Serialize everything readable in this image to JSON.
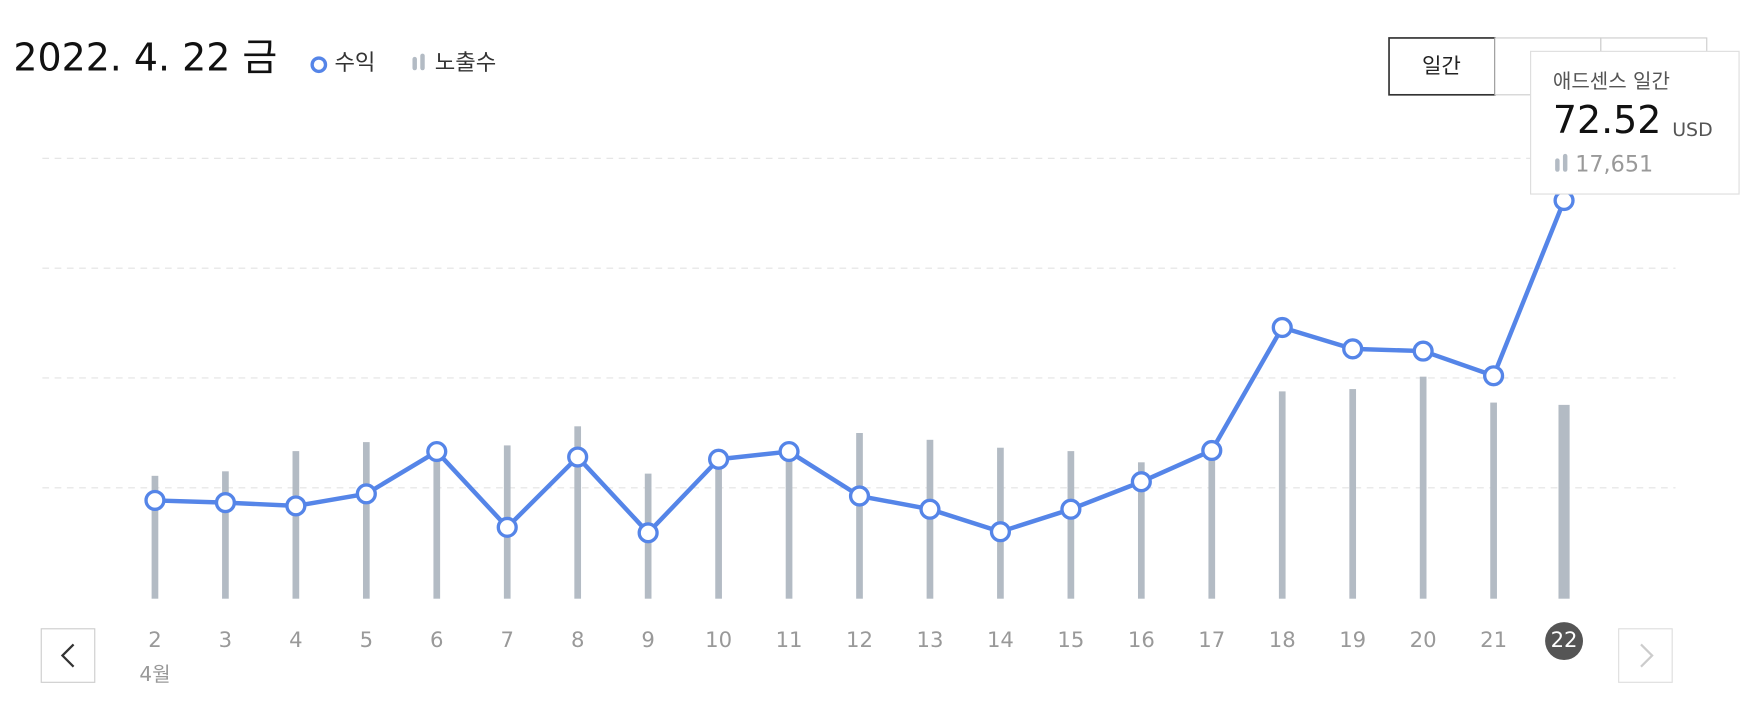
{
  "chart_data": {
    "type": "line",
    "title": "2022. 4. 22 금",
    "categories": [
      "2",
      "3",
      "4",
      "5",
      "6",
      "7",
      "8",
      "9",
      "10",
      "11",
      "12",
      "13",
      "14",
      "15",
      "16",
      "17",
      "18",
      "19",
      "20",
      "21",
      "22"
    ],
    "month_label": "4월",
    "series": [
      {
        "name": "수익",
        "type": "line",
        "color": "#5585e8",
        "axis": "y",
        "values": [
          17.9,
          17.5,
          16.9,
          19.1,
          26.8,
          13.0,
          25.8,
          12.0,
          25.4,
          26.8,
          18.7,
          16.3,
          12.2,
          16.3,
          21.3,
          27.0,
          49.4,
          45.5,
          45.1,
          40.6,
          72.52
        ]
      },
      {
        "name": "노출수",
        "type": "bar",
        "color": "#b3bbc4",
        "axis": "y2",
        "values": [
          11190,
          11600,
          13440,
          14260,
          13650,
          13960,
          15700,
          11390,
          12830,
          13550,
          15090,
          14470,
          13750,
          13440,
          12420,
          13650,
          18880,
          19090,
          20220,
          17860,
          17651
        ],
        "value_labels": [
          null,
          null,
          null,
          null,
          null,
          null,
          null,
          null,
          null,
          null,
          null,
          null,
          null,
          null,
          null,
          null,
          null,
          null,
          null,
          null,
          "17,651"
        ]
      }
    ],
    "ylim": [
      0,
      80
    ],
    "y2lim": [
      0,
      40000
    ],
    "grid": true,
    "selected_index": 20,
    "period_button": "일간",
    "tooltip": {
      "title": "애드센스 일간",
      "unit": "USD"
    }
  }
}
